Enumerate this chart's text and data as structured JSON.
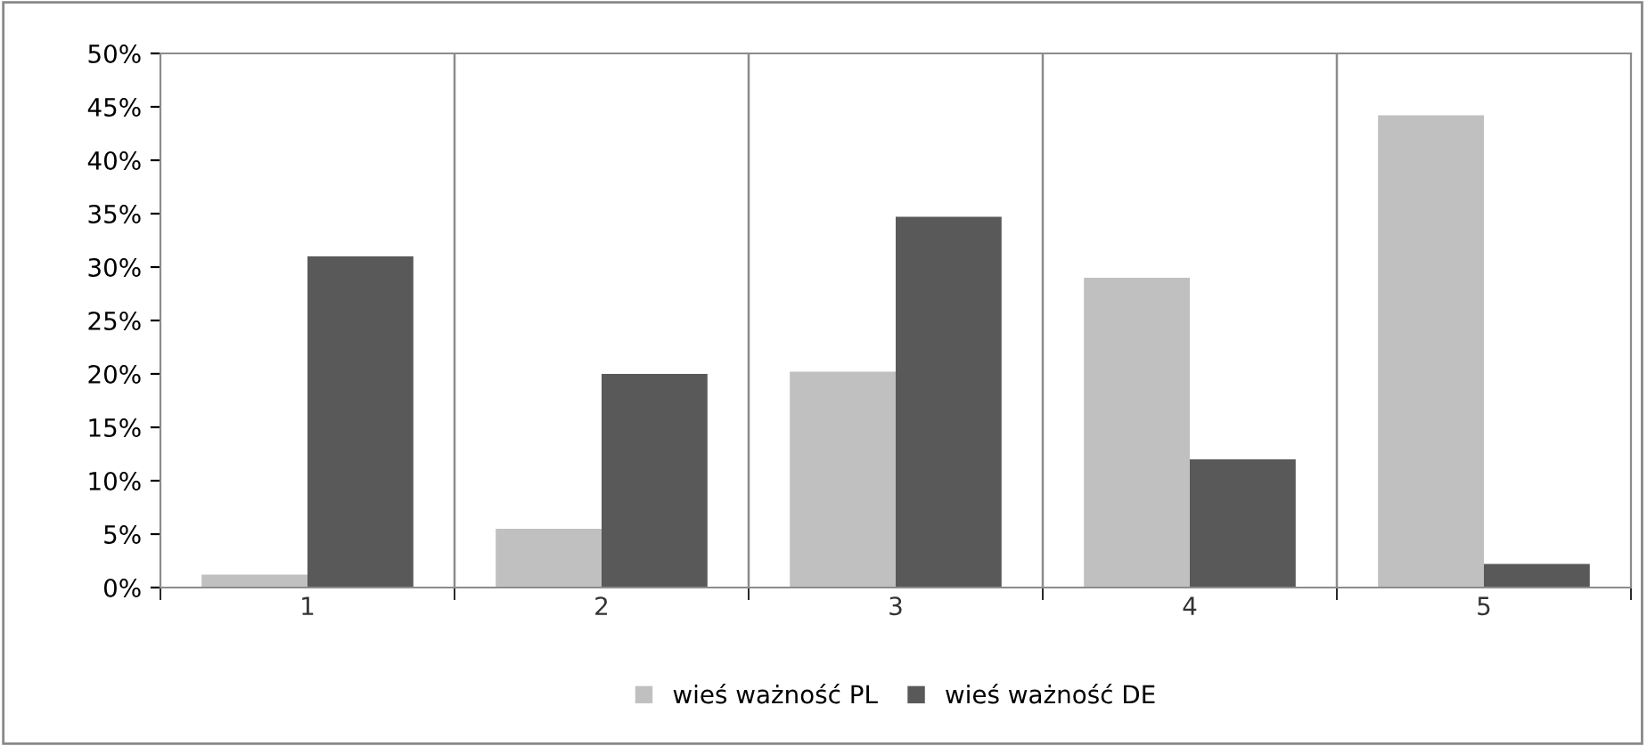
{
  "chart_data": {
    "type": "bar",
    "categories": [
      "1",
      "2",
      "3",
      "4",
      "5"
    ],
    "series": [
      {
        "name": "wieś ważność PL",
        "color": "#c0c0c0",
        "values": [
          1.2,
          5.5,
          20.2,
          29,
          44.2
        ]
      },
      {
        "name": "wieś ważność DE",
        "color": "#595959",
        "values": [
          31,
          20,
          34.7,
          12,
          2.2
        ]
      }
    ],
    "ylim": [
      0,
      50
    ],
    "yticks": [
      {
        "value": 0,
        "label": "0%"
      },
      {
        "value": 5,
        "label": "5%"
      },
      {
        "value": 10,
        "label": "10%"
      },
      {
        "value": 15,
        "label": "15%"
      },
      {
        "value": 20,
        "label": "20%"
      },
      {
        "value": 25,
        "label": "25%"
      },
      {
        "value": 30,
        "label": "30%"
      },
      {
        "value": 35,
        "label": "35%"
      },
      {
        "value": 40,
        "label": "40%"
      },
      {
        "value": 45,
        "label": "45%"
      },
      {
        "value": 50,
        "label": "50%"
      }
    ],
    "grid": "x",
    "legend": "bottom"
  }
}
